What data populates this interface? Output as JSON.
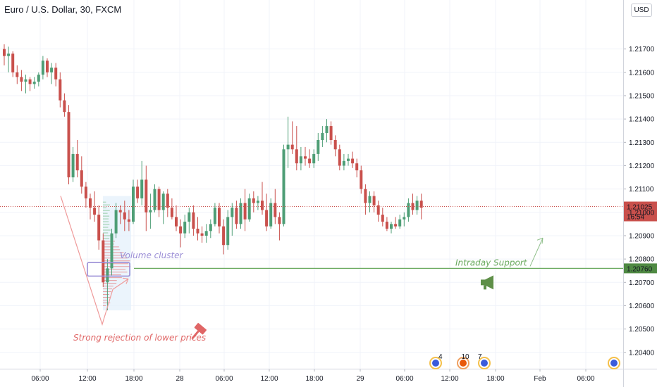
{
  "header": {
    "title": "Euro / U.S. Dollar, 30, FXCM",
    "currency_button": "USD"
  },
  "colors": {
    "up": "#4e9e76",
    "down": "#c9504c",
    "support": "#6aaa5e",
    "cluster": "#9b8ed6",
    "rejection": "#e06666",
    "last_price_tag": "#c9504c"
  },
  "chart_data": {
    "type": "candlestick",
    "title": "Euro / U.S. Dollar, 30, FXCM",
    "ylim": [
      1.2033,
      1.2191
    ],
    "yticks": [
      "1.20400",
      "1.20500",
      "1.20600",
      "1.20700",
      "1.20800",
      "1.20900",
      "1.21000",
      "1.21100",
      "1.21200",
      "1.21300",
      "1.21400",
      "1.21500",
      "1.21600",
      "1.21700"
    ],
    "xticks": [
      "06:00",
      "12:00",
      "18:00",
      "28",
      "06:00",
      "12:00",
      "18:00",
      "29",
      "06:00",
      "12:00",
      "18:00",
      "Feb",
      "06:00"
    ],
    "candles": [
      [
        1.217,
        1.2172,
        1.2163,
        1.2167
      ],
      [
        1.2167,
        1.2171,
        1.216,
        1.2168
      ],
      [
        1.2168,
        1.2169,
        1.2158,
        1.216
      ],
      [
        1.216,
        1.2163,
        1.2155,
        1.2158
      ],
      [
        1.2158,
        1.2161,
        1.2152,
        1.2156
      ],
      [
        1.2156,
        1.2159,
        1.2151,
        1.2157
      ],
      [
        1.2157,
        1.2158,
        1.2152,
        1.2155
      ],
      [
        1.2155,
        1.2158,
        1.2153,
        1.2156
      ],
      [
        1.2156,
        1.216,
        1.2154,
        1.2159
      ],
      [
        1.2159,
        1.2167,
        1.2157,
        1.2165
      ],
      [
        1.2165,
        1.2166,
        1.2158,
        1.216
      ],
      [
        1.216,
        1.2164,
        1.2155,
        1.2162
      ],
      [
        1.2162,
        1.2164,
        1.2154,
        1.2157
      ],
      [
        1.2157,
        1.216,
        1.2145,
        1.2148
      ],
      [
        1.2148,
        1.2151,
        1.2141,
        1.2143
      ],
      [
        1.2143,
        1.2146,
        1.2112,
        1.2115
      ],
      [
        1.2115,
        1.2128,
        1.2113,
        1.2125
      ],
      [
        1.2125,
        1.2131,
        1.2115,
        1.2118
      ],
      [
        1.2118,
        1.2124,
        1.2108,
        1.2111
      ],
      [
        1.2111,
        1.2113,
        1.2102,
        1.2106
      ],
      [
        1.2106,
        1.2108,
        1.2097,
        1.2102
      ],
      [
        1.2102,
        1.2109,
        1.2096,
        1.2099
      ],
      [
        1.2099,
        1.2103,
        1.2084,
        1.2088
      ],
      [
        1.2088,
        1.2091,
        1.2068,
        1.207
      ],
      [
        1.207,
        1.208,
        1.2058,
        1.2076
      ],
      [
        1.2076,
        1.2093,
        1.2073,
        1.2091
      ],
      [
        1.2091,
        1.2104,
        1.2089,
        1.2101
      ],
      [
        1.2101,
        1.2103,
        1.2095,
        1.21
      ],
      [
        1.21,
        1.2105,
        1.2092,
        1.2097
      ],
      [
        1.2097,
        1.2101,
        1.2092,
        1.2096
      ],
      [
        1.2096,
        1.2114,
        1.2095,
        1.2111
      ],
      [
        1.2111,
        1.2114,
        1.2104,
        1.2106
      ],
      [
        1.2106,
        1.2122,
        1.2103,
        1.2114
      ],
      [
        1.2114,
        1.212,
        1.2092,
        1.21
      ],
      [
        1.21,
        1.2108,
        1.2093,
        1.2101
      ],
      [
        1.2101,
        1.2112,
        1.21,
        1.211
      ],
      [
        1.211,
        1.2111,
        1.2098,
        1.2101
      ],
      [
        1.2101,
        1.2109,
        1.2095,
        1.2108
      ],
      [
        1.2108,
        1.211,
        1.2098,
        1.2102
      ],
      [
        1.2102,
        1.2106,
        1.2097,
        1.2098
      ],
      [
        1.2098,
        1.2103,
        1.2092,
        1.2094
      ],
      [
        1.2094,
        1.2097,
        1.2085,
        1.2091
      ],
      [
        1.2091,
        1.2099,
        1.2089,
        1.2096
      ],
      [
        1.2096,
        1.2102,
        1.2091,
        1.21
      ],
      [
        1.21,
        1.2103,
        1.209,
        1.2093
      ],
      [
        1.2093,
        1.2098,
        1.2088,
        1.2091
      ],
      [
        1.2091,
        1.2094,
        1.2087,
        1.209
      ],
      [
        1.209,
        1.2095,
        1.2087,
        1.2092
      ],
      [
        1.2092,
        1.2097,
        1.2089,
        1.2095
      ],
      [
        1.2095,
        1.2104,
        1.2094,
        1.2102
      ],
      [
        1.2102,
        1.2104,
        1.2091,
        1.2094
      ],
      [
        1.2094,
        1.2097,
        1.2082,
        1.2086
      ],
      [
        1.2086,
        1.2101,
        1.2084,
        1.2098
      ],
      [
        1.2098,
        1.2104,
        1.209,
        1.2102
      ],
      [
        1.2102,
        1.2105,
        1.2093,
        1.2095
      ],
      [
        1.2095,
        1.2106,
        1.2093,
        1.2104
      ],
      [
        1.2104,
        1.211,
        1.2092,
        1.2097
      ],
      [
        1.2097,
        1.2108,
        1.2096,
        1.2106
      ],
      [
        1.2106,
        1.2109,
        1.21,
        1.2104
      ],
      [
        1.2104,
        1.2107,
        1.2101,
        1.2105
      ],
      [
        1.2105,
        1.2113,
        1.2099,
        1.2101
      ],
      [
        1.2101,
        1.2108,
        1.2092,
        1.2094
      ],
      [
        1.2094,
        1.2106,
        1.2093,
        1.2104
      ],
      [
        1.2104,
        1.211,
        1.2095,
        1.2098
      ],
      [
        1.2098,
        1.21,
        1.2088,
        1.2095
      ],
      [
        1.2095,
        1.2129,
        1.2094,
        1.2127
      ],
      [
        1.2127,
        1.2141,
        1.2119,
        1.2129
      ],
      [
        1.2129,
        1.2139,
        1.2125,
        1.2127
      ],
      [
        1.2127,
        1.2137,
        1.2118,
        1.2121
      ],
      [
        1.2121,
        1.2128,
        1.2118,
        1.2124
      ],
      [
        1.2124,
        1.2128,
        1.212,
        1.2123
      ],
      [
        1.2123,
        1.2127,
        1.2119,
        1.2121
      ],
      [
        1.2121,
        1.2127,
        1.2119,
        1.2125
      ],
      [
        1.2125,
        1.2134,
        1.2122,
        1.2131
      ],
      [
        1.2131,
        1.2137,
        1.2128,
        1.2134
      ],
      [
        1.2134,
        1.214,
        1.213,
        1.2137
      ],
      [
        1.2137,
        1.2139,
        1.2129,
        1.2131
      ],
      [
        1.2131,
        1.2133,
        1.2124,
        1.2127
      ],
      [
        1.2127,
        1.2129,
        1.2118,
        1.212
      ],
      [
        1.212,
        1.2125,
        1.2118,
        1.2122
      ],
      [
        1.2122,
        1.2125,
        1.212,
        1.2123
      ],
      [
        1.2123,
        1.2126,
        1.2119,
        1.2121
      ],
      [
        1.2121,
        1.2123,
        1.2115,
        1.2118
      ],
      [
        1.2118,
        1.212,
        1.2108,
        1.211
      ],
      [
        1.211,
        1.2112,
        1.2099,
        1.2104
      ],
      [
        1.2104,
        1.2109,
        1.21,
        1.2107
      ],
      [
        1.2107,
        1.2109,
        1.21,
        1.2103
      ],
      [
        1.2103,
        1.2105,
        1.2096,
        1.2099
      ],
      [
        1.2099,
        1.2102,
        1.2094,
        1.2096
      ],
      [
        1.2096,
        1.2098,
        1.2092,
        1.2093
      ],
      [
        1.2093,
        1.2096,
        1.2091,
        1.2095
      ],
      [
        1.2095,
        1.2098,
        1.2093,
        1.2094
      ],
      [
        1.2094,
        1.2099,
        1.2093,
        1.2097
      ],
      [
        1.2097,
        1.21,
        1.2094,
        1.2098
      ],
      [
        1.2098,
        1.2106,
        1.2096,
        1.2104
      ],
      [
        1.2104,
        1.2108,
        1.2099,
        1.2101
      ],
      [
        1.2101,
        1.2107,
        1.2099,
        1.2105
      ],
      [
        1.2105,
        1.2108,
        1.2097,
        1.2102
      ]
    ],
    "current_price": {
      "value": 1.21025,
      "label": "1.21025",
      "countdown": "16:54"
    },
    "support_line": {
      "value": 1.2076,
      "label": "1.20760",
      "text": "Intraday Support"
    },
    "annotations": {
      "volume_cluster": "Volume cluster",
      "rejection": "Strong rejection of lower prices"
    },
    "events": [
      {
        "badge": "4"
      },
      {
        "badge": "10"
      },
      {
        "badge": "7"
      }
    ]
  }
}
